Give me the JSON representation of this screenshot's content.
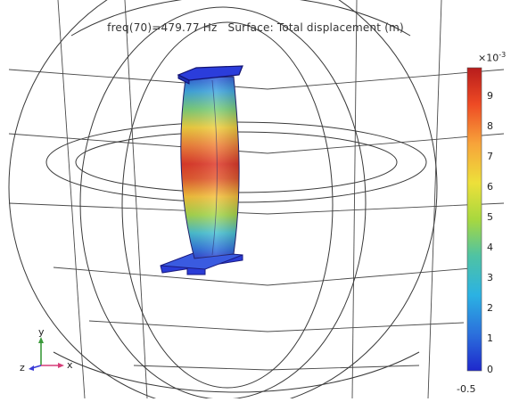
{
  "plot": {
    "title_freq": "freq(70)=479.77 Hz",
    "title_surface": "Surface: Total displacement (m)"
  },
  "colorbar": {
    "exponent_base": "×10",
    "exponent_power": "-3",
    "ticks": [
      "9",
      "8",
      "7",
      "6",
      "5",
      "4",
      "3",
      "2",
      "1",
      "0"
    ],
    "colors_top_to_bottom": [
      "#c81e1e",
      "#ef4b23",
      "#f7a33a",
      "#ece03a",
      "#a8d83e",
      "#4fc3a3",
      "#2bb2e3",
      "#2b6fdc",
      "#1f2fcf"
    ]
  },
  "axes": {
    "x": "x",
    "y": "y",
    "z": "z",
    "corner_value": "-0.5"
  }
}
